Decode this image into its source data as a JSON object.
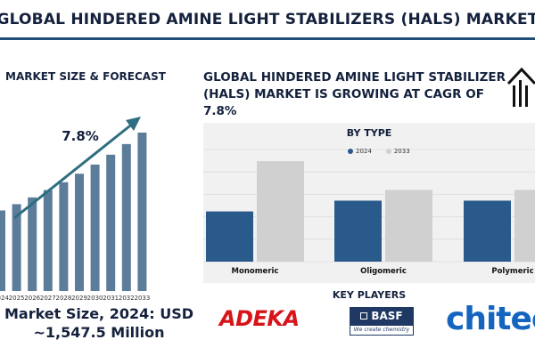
{
  "header": {
    "title": "GLOBAL HINDERED AMINE LIGHT STABILIZERS (HALS) MARKET"
  },
  "forecast": {
    "heading": "MARKET SIZE & FORECAST",
    "cagr_label": "7.8%",
    "market_size_line1": "Market Size, 2024: USD",
    "market_size_line2": "~1,547.5 Million"
  },
  "growth_statement": "GLOBAL HINDERED AMINE LIGHT STABILIZER (HALS) MARKET IS GROWING AT CAGR OF 7.8%",
  "by_type": {
    "title": "BY TYPE"
  },
  "key_players": {
    "title": "KEY PLAYERS",
    "logos": [
      "ADEKA",
      "BASF",
      "We create chemistry",
      "chitec"
    ]
  },
  "colors": {
    "navy": "#14213d",
    "bar_blue": "#5b7d9a",
    "series_2024": "#2a5a8c",
    "series_2033": "#d0d0d0",
    "arrow": "#2e6e80"
  },
  "chart_data": [
    {
      "type": "bar",
      "title": "MARKET SIZE & FORECAST",
      "categories": [
        "2024",
        "2025",
        "2026",
        "2027",
        "2028",
        "2029",
        "2030",
        "2031",
        "2032",
        "2033"
      ],
      "values": [
        1547.5,
        1668.2,
        1798.3,
        1938.6,
        2089.8,
        2252.8,
        2428.5,
        2617.9,
        2822.1,
        3042.2
      ],
      "annotation": "7.8%"
    },
    {
      "type": "bar",
      "title": "BY TYPE",
      "categories": [
        "Monomeric",
        "Oligomeric",
        "Polymeric"
      ],
      "series": [
        {
          "name": "2024",
          "values": [
            560,
            680,
            680
          ]
        },
        {
          "name": "2033",
          "values": [
            1120,
            800,
            800
          ]
        }
      ],
      "ylim": [
        0,
        1250
      ],
      "grid": true,
      "legend": "top-center"
    }
  ]
}
